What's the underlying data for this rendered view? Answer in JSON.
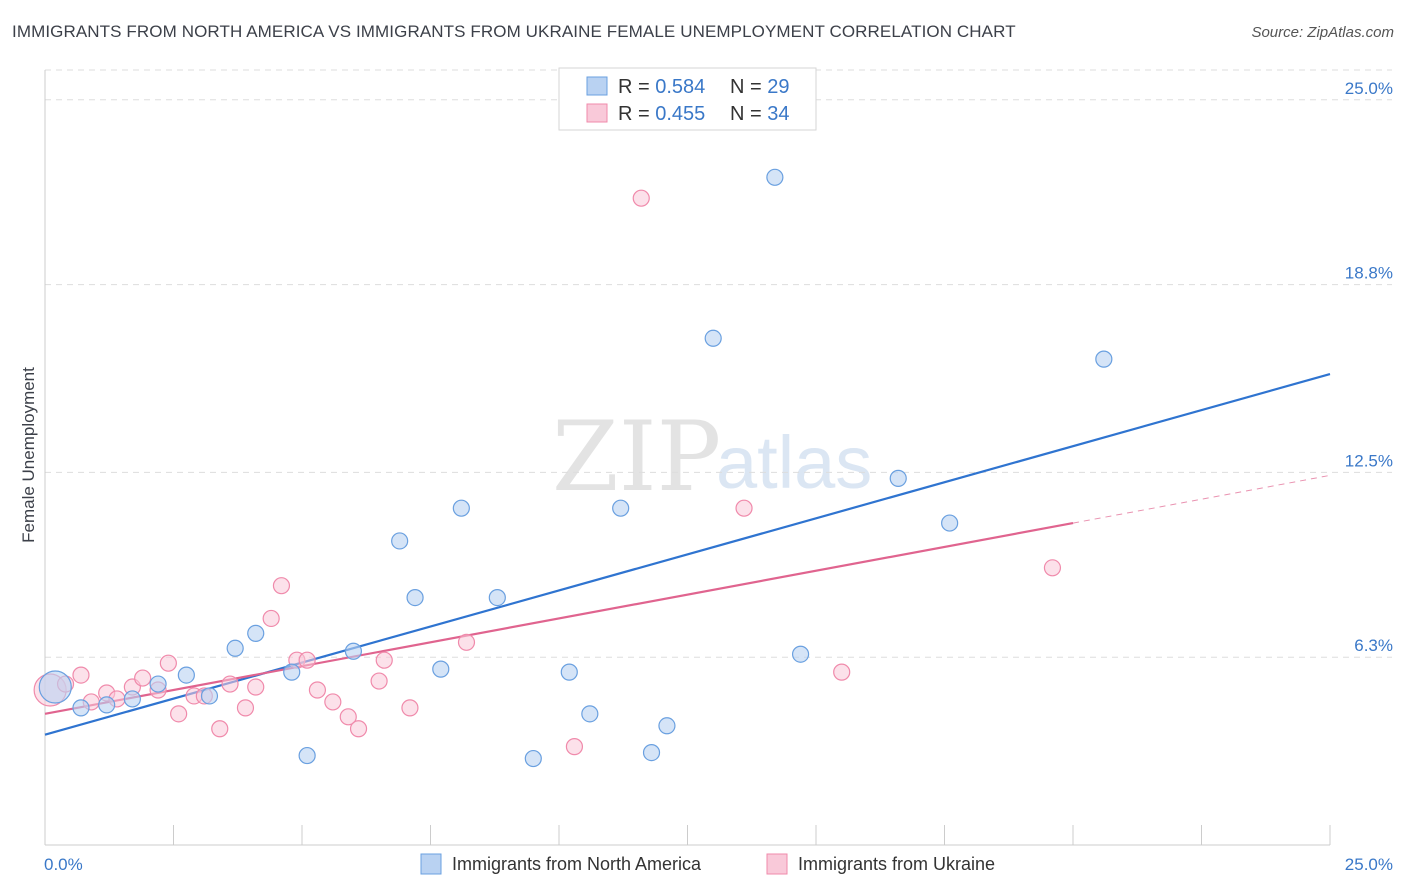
{
  "title": "IMMIGRANTS FROM NORTH AMERICA VS IMMIGRANTS FROM UKRAINE FEMALE UNEMPLOYMENT CORRELATION CHART",
  "source": "Source: ZipAtlas.com",
  "watermark": {
    "zip": "ZIP",
    "atlas": "atlas"
  },
  "colors": {
    "blue": "#6aa0e0",
    "blue_line": "#2f74d0",
    "pink": "#f08aab",
    "pink_line": "#e0648f",
    "value_text": "#3a78c8"
  },
  "legend": [
    {
      "r_label": "R = ",
      "r_value": "0.584",
      "n_label": "N = ",
      "n_value": "29"
    },
    {
      "r_label": "R = ",
      "r_value": "0.455",
      "n_label": "N = ",
      "n_value": "34"
    }
  ],
  "chart_data": {
    "type": "scatter",
    "title": "IMMIGRANTS FROM NORTH AMERICA VS IMMIGRANTS FROM UKRAINE FEMALE UNEMPLOYMENT CORRELATION CHART",
    "ylabel": "Female Unemployment",
    "xlabel": "",
    "xlim": [
      0,
      25
    ],
    "ylim": [
      0,
      26
    ],
    "x_tick_labels": [
      "0.0%",
      "25.0%"
    ],
    "y_ticks": [
      6.3,
      12.5,
      18.8,
      25.0
    ],
    "y_tick_labels": [
      "6.3%",
      "12.5%",
      "18.8%",
      "25.0%"
    ],
    "grid": "horizontal dashed",
    "legend_position": "top-center",
    "series": [
      {
        "name": "Immigrants from North America",
        "color": "#6aa0e0",
        "r": 0.584,
        "n": 29,
        "trend": {
          "x": [
            0,
            25
          ],
          "y": [
            3.7,
            15.8
          ]
        },
        "points": [
          {
            "x": 0.2,
            "y": 5.3,
            "big": true
          },
          {
            "x": 0.7,
            "y": 4.6
          },
          {
            "x": 1.2,
            "y": 4.7
          },
          {
            "x": 1.7,
            "y": 4.9
          },
          {
            "x": 2.2,
            "y": 5.4
          },
          {
            "x": 2.75,
            "y": 5.7
          },
          {
            "x": 3.2,
            "y": 5.0
          },
          {
            "x": 3.7,
            "y": 6.6
          },
          {
            "x": 4.1,
            "y": 7.1
          },
          {
            "x": 4.8,
            "y": 5.8
          },
          {
            "x": 5.1,
            "y": 3.0
          },
          {
            "x": 6.0,
            "y": 6.5
          },
          {
            "x": 6.9,
            "y": 10.2
          },
          {
            "x": 7.2,
            "y": 8.3
          },
          {
            "x": 7.7,
            "y": 5.9
          },
          {
            "x": 8.1,
            "y": 11.3
          },
          {
            "x": 8.8,
            "y": 8.3
          },
          {
            "x": 9.5,
            "y": 2.9
          },
          {
            "x": 10.2,
            "y": 5.8
          },
          {
            "x": 10.6,
            "y": 4.4
          },
          {
            "x": 11.2,
            "y": 11.3
          },
          {
            "x": 11.8,
            "y": 3.1
          },
          {
            "x": 12.1,
            "y": 4.0
          },
          {
            "x": 13.0,
            "y": 17.0
          },
          {
            "x": 14.2,
            "y": 22.4
          },
          {
            "x": 14.7,
            "y": 6.4
          },
          {
            "x": 16.6,
            "y": 12.3
          },
          {
            "x": 17.6,
            "y": 10.8
          },
          {
            "x": 20.6,
            "y": 16.3
          }
        ]
      },
      {
        "name": "Immigrants from Ukraine",
        "color": "#f08aab",
        "r": 0.455,
        "n": 34,
        "trend": {
          "x": [
            0,
            20
          ],
          "y": [
            4.4,
            10.8
          ]
        },
        "trend_extension": {
          "x": [
            20,
            25
          ],
          "y": [
            10.8,
            12.4
          ]
        },
        "points": [
          {
            "x": 0.1,
            "y": 5.2,
            "big": true
          },
          {
            "x": 0.4,
            "y": 5.4
          },
          {
            "x": 0.7,
            "y": 5.7
          },
          {
            "x": 0.9,
            "y": 4.8
          },
          {
            "x": 1.2,
            "y": 5.1
          },
          {
            "x": 1.4,
            "y": 4.9
          },
          {
            "x": 1.7,
            "y": 5.3
          },
          {
            "x": 1.9,
            "y": 5.6
          },
          {
            "x": 2.2,
            "y": 5.2
          },
          {
            "x": 2.4,
            "y": 6.1
          },
          {
            "x": 2.6,
            "y": 4.4
          },
          {
            "x": 2.9,
            "y": 5.0
          },
          {
            "x": 3.1,
            "y": 5.0
          },
          {
            "x": 3.4,
            "y": 3.9
          },
          {
            "x": 3.6,
            "y": 5.4
          },
          {
            "x": 3.9,
            "y": 4.6
          },
          {
            "x": 4.1,
            "y": 5.3
          },
          {
            "x": 4.4,
            "y": 7.6
          },
          {
            "x": 4.6,
            "y": 8.7
          },
          {
            "x": 4.9,
            "y": 6.2
          },
          {
            "x": 5.1,
            "y": 6.2
          },
          {
            "x": 5.3,
            "y": 5.2
          },
          {
            "x": 5.6,
            "y": 4.8
          },
          {
            "x": 5.9,
            "y": 4.3
          },
          {
            "x": 6.1,
            "y": 3.9
          },
          {
            "x": 6.5,
            "y": 5.5
          },
          {
            "x": 6.6,
            "y": 6.2
          },
          {
            "x": 7.1,
            "y": 4.6
          },
          {
            "x": 8.2,
            "y": 6.8
          },
          {
            "x": 10.3,
            "y": 3.3
          },
          {
            "x": 11.6,
            "y": 21.7
          },
          {
            "x": 13.6,
            "y": 11.3
          },
          {
            "x": 15.5,
            "y": 5.8
          },
          {
            "x": 19.6,
            "y": 9.3
          }
        ]
      }
    ]
  }
}
